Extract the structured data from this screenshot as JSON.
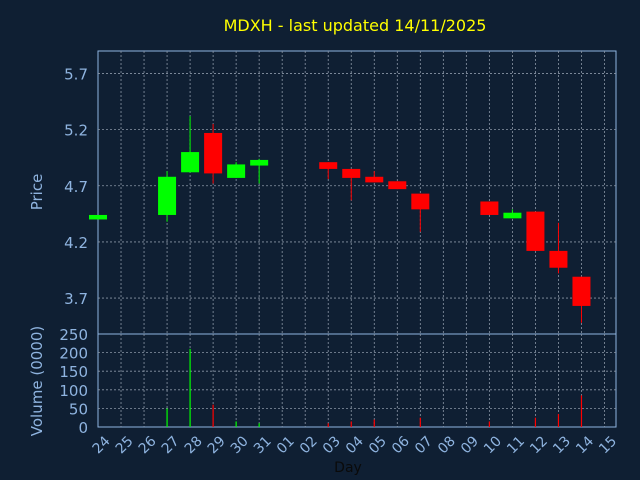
{
  "chart_data": [
    {
      "type": "candlestick",
      "title": "MDXH - last updated 14/11/2025",
      "ylabel": "Price",
      "ylim": [
        3.38,
        5.9
      ],
      "yticks": [
        "3.7",
        "4.2",
        "4.7",
        "5.2",
        "5.7"
      ],
      "ytick_values": [
        3.7,
        4.2,
        4.7,
        5.2,
        5.7
      ],
      "grid": true,
      "x_labels": [
        "24",
        "25",
        "26",
        "27",
        "28",
        "29",
        "30",
        "31",
        "01",
        "02",
        "03",
        "04",
        "05",
        "06",
        "07",
        "08",
        "09",
        "10",
        "11",
        "12",
        "13",
        "14",
        "15"
      ],
      "candles": [
        {
          "day": "24",
          "open": 4.4,
          "close": 4.44,
          "high": 4.44,
          "low": 4.4
        },
        {
          "day": "27",
          "open": 4.44,
          "close": 4.78,
          "high": 4.83,
          "low": 4.38
        },
        {
          "day": "28",
          "open": 4.82,
          "close": 5.0,
          "high": 5.32,
          "low": 4.82
        },
        {
          "day": "29",
          "open": 5.17,
          "close": 4.81,
          "high": 5.25,
          "low": 4.72
        },
        {
          "day": "30",
          "open": 4.77,
          "close": 4.89,
          "high": 4.91,
          "low": 4.77
        },
        {
          "day": "31",
          "open": 4.88,
          "close": 4.93,
          "high": 4.94,
          "low": 4.72
        },
        {
          "day": "03",
          "open": 4.91,
          "close": 4.85,
          "high": 4.91,
          "low": 4.76
        },
        {
          "day": "04",
          "open": 4.85,
          "close": 4.77,
          "high": 4.85,
          "low": 4.57
        },
        {
          "day": "05",
          "open": 4.78,
          "close": 4.73,
          "high": 4.83,
          "low": 4.73
        },
        {
          "day": "06",
          "open": 4.74,
          "close": 4.67,
          "high": 4.74,
          "low": 4.67
        },
        {
          "day": "07",
          "open": 4.63,
          "close": 4.49,
          "high": 4.63,
          "low": 4.29
        },
        {
          "day": "10",
          "open": 4.56,
          "close": 4.44,
          "high": 4.56,
          "low": 4.44
        },
        {
          "day": "11",
          "open": 4.41,
          "close": 4.46,
          "high": 4.49,
          "low": 4.41
        },
        {
          "day": "12",
          "open": 4.47,
          "close": 4.12,
          "high": 4.47,
          "low": 4.12
        },
        {
          "day": "13",
          "open": 4.12,
          "close": 3.97,
          "high": 4.37,
          "low": 3.92
        },
        {
          "day": "14",
          "open": 3.89,
          "close": 3.63,
          "high": 3.89,
          "low": 3.48
        }
      ],
      "colors": {
        "up": "#00ff00",
        "down": "#ff0000",
        "background": "#0f1f33",
        "grid": "#8a96a6",
        "axis": "#8fb4e0",
        "title": "#ffff00"
      }
    },
    {
      "type": "bar",
      "ylabel": "Volume (0000)",
      "xlabel": "Day",
      "ylim": [
        0,
        250
      ],
      "yticks": [
        "0",
        "50",
        "100",
        "150",
        "200",
        "250"
      ],
      "ytick_values": [
        0,
        50,
        100,
        150,
        200,
        250
      ],
      "categories": [
        "27",
        "28",
        "29",
        "30",
        "31",
        "03",
        "04",
        "05",
        "07",
        "10",
        "12",
        "13",
        "14"
      ],
      "values": [
        50,
        210,
        60,
        15,
        10,
        10,
        15,
        20,
        25,
        15,
        25,
        35,
        85
      ],
      "bar_colors": [
        "#00ff00",
        "#00ff00",
        "#ff0000",
        "#00ff00",
        "#00ff00",
        "#ff0000",
        "#ff0000",
        "#ff0000",
        "#ff0000",
        "#ff0000",
        "#ff0000",
        "#ff0000",
        "#ff0000"
      ]
    }
  ]
}
